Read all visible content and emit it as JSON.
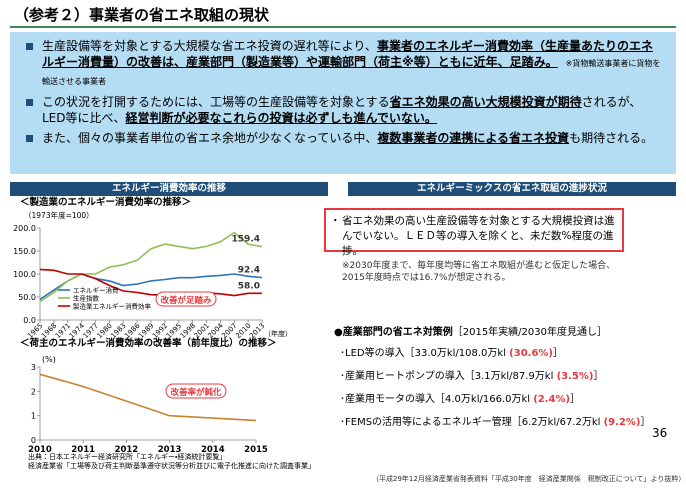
{
  "header": {
    "title": "（参考２）事業者の省エネ取組の現状"
  },
  "bullets": [
    {
      "segments": [
        {
          "text": "生産設備等を対象とする大規模な省エネ投資の遅れ等により、",
          "em": false
        },
        {
          "text": "事業者のエネルギー消費効率（生産量あたりのエネルギー消費量）の改善は、産業部門（製造業等）や運輸部門（荷主※等）ともに近年、足踏み。",
          "em": true
        }
      ],
      "note": "※貨物輸送事業者に貨物を輸送させる事業者"
    },
    {
      "segments": [
        {
          "text": "この状況を打開するためには、工場等の生産設備等を対象とする",
          "em": false
        },
        {
          "text": "省エネ効果の高い大規模投資が期待",
          "em": true
        },
        {
          "text": "されるが、LED等に比べ、",
          "em": false
        },
        {
          "text": "経営判断が必要なこれらの投資は必ずしも進んでいない。",
          "em": true
        }
      ]
    },
    {
      "segments": [
        {
          "text": "また、個々の事業者単位の省エネ余地が少なくなっている中、",
          "em": false
        },
        {
          "text": "複数事業者の連携による省エネ投資",
          "em": true
        },
        {
          "text": "も期待される。",
          "em": false
        }
      ]
    }
  ],
  "left_panel": {
    "header": "エネルギー消費効率の推移"
  },
  "chart_data": [
    {
      "type": "line",
      "title": "＜製造業のエネルギー消費効率の推移＞",
      "subtitle": "（1973年度=100）",
      "x_label": "（年度）",
      "x": [
        1965,
        1968,
        1971,
        1974,
        1977,
        1980,
        1983,
        1986,
        1989,
        1992,
        1995,
        1998,
        2001,
        2004,
        2007,
        2010,
        2013
      ],
      "xlim": [
        1965,
        2013
      ],
      "xticks": [
        1965,
        1968,
        1971,
        1974,
        1977,
        1980,
        1983,
        1986,
        1989,
        1992,
        1995,
        1998,
        2001,
        2004,
        2007,
        2010,
        2013
      ],
      "ylim": [
        0,
        200
      ],
      "yticks": [
        {
          "value": 0,
          "label": "0.0"
        },
        {
          "value": 50,
          "label": "50.0"
        },
        {
          "value": 100,
          "label": "100.0"
        },
        {
          "value": 150,
          "label": "150.0"
        },
        {
          "value": 200,
          "label": "200.0"
        }
      ],
      "series": [
        {
          "name": "エネルギー消費",
          "color": "#2e75b6",
          "values": [
            45,
            65,
            85,
            100,
            90,
            85,
            75,
            78,
            85,
            88,
            92,
            92,
            95,
            97,
            100,
            95,
            92.4
          ],
          "value_labels": [
            null,
            null,
            null,
            null,
            null,
            null,
            null,
            null,
            null,
            null,
            null,
            null,
            null,
            null,
            null,
            null,
            "92.4"
          ]
        },
        {
          "name": "生産指数",
          "color": "#8cc152",
          "values": [
            40,
            60,
            85,
            100,
            100,
            115,
            120,
            130,
            155,
            165,
            160,
            155,
            160,
            170,
            190,
            165,
            159.4
          ],
          "value_labels": [
            null,
            null,
            null,
            null,
            null,
            null,
            null,
            null,
            null,
            null,
            null,
            null,
            null,
            null,
            null,
            null,
            "159.4"
          ]
        },
        {
          "name": "製造業エネルギー消費効率",
          "color": "#c00000",
          "values": [
            110,
            108,
            100,
            100,
            90,
            75,
            63,
            60,
            55,
            54,
            57,
            60,
            59,
            57,
            53,
            58,
            58
          ],
          "value_labels": [
            null,
            null,
            null,
            null,
            null,
            null,
            null,
            null,
            null,
            null,
            null,
            null,
            null,
            null,
            null,
            null,
            "58.0"
          ]
        }
      ],
      "annotation": "改善が足踏み"
    },
    {
      "type": "line",
      "title": "＜荷主のエネルギー消費効率の改善率（前年度比）の推移＞",
      "y_label": "(%)",
      "x": [
        2010,
        2011,
        2012,
        2013,
        2014,
        2015
      ],
      "xlim": [
        2010,
        2015
      ],
      "xticks": [
        2010,
        2011,
        2012,
        2013,
        2014,
        2015
      ],
      "ylim": [
        0,
        3
      ],
      "yticks": [
        0,
        1,
        2,
        3
      ],
      "series": [
        {
          "name": "改善率",
          "color": "#c9822b",
          "values": [
            2.7,
            2.2,
            1.6,
            1.0,
            0.9,
            0.8
          ]
        }
      ],
      "annotation": "改善率が鈍化"
    }
  ],
  "source": [
    "出典：日本エネルギー経済研究所「エネルギー・経済統計要覧」",
    "経済産業省「工場等及び荷主判断基準遵守状況等分析並びに電子化推進に向けた調査事業」"
  ],
  "right_panel": {
    "header": "エネルギーミックスの省エネ取組の進捗状況",
    "callout": "省エネ効果の高い生産設備等を対象とする大規模投資は進んでいない。ＬＥＤ等の導入を除くと、未だ数%程度の進捗。",
    "note": "※2030年度まで、毎年度均等に省エネ取組が進むと仮定した場合、2015年度時点では16.7%が想定される。",
    "list_title": "●産業部門の省エネ対策例",
    "list_period": "［2015年実績/2030年度見通し］",
    "items": [
      {
        "text": "･LED等の導入［33.0万kl/108.0万kl ",
        "pct": "(30.6%)",
        "end": "］"
      },
      {
        "text": "･産業用ヒートポンプの導入［3.1万kl/87.9万kl ",
        "pct": "(3.5%)",
        "end": "］"
      },
      {
        "text": "･産業用モータの導入［4.0万kl/166.0万kl ",
        "pct": "(2.4%)",
        "end": "］"
      },
      {
        "text": "･FEMSの活用等によるエネルギー管理［6.2万kl/67.2万kl ",
        "pct": "(9.2%)",
        "end": "］"
      }
    ]
  },
  "page_number": "36",
  "footer": "（平成29年12月経済産業省発表資料「平成30年度　経済産業関係　税制改正について」より抜粋）"
}
